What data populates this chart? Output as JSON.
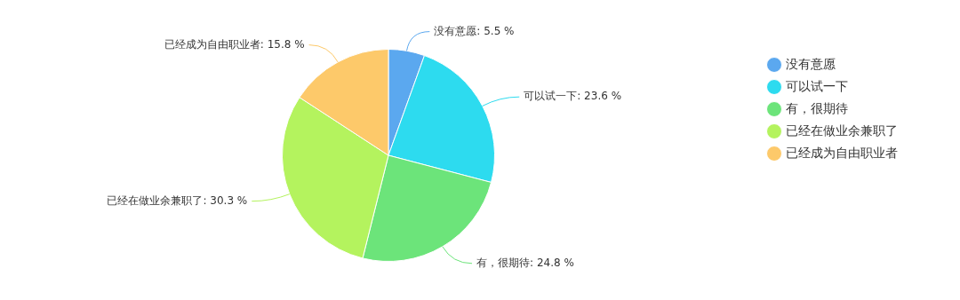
{
  "chart_data": {
    "type": "pie",
    "categories": [
      "没有意愿",
      "可以试一下",
      "有，很期待",
      "已经在做业余兼职了",
      "已经成为自由职业者"
    ],
    "values": [
      5.5,
      23.6,
      24.8,
      30.3,
      15.8
    ],
    "colors": [
      "#5ba8ef",
      "#2ddbef",
      "#6ce47a",
      "#b4f35e",
      "#fdc96a"
    ],
    "value_labels": [
      "没有意愿: 5.5 %",
      "可以试一下: 23.6 %",
      "有，很期待: 24.8 %",
      "已经在做业余兼职了: 30.3 %",
      "已经成为自由职业者: 15.8 %"
    ],
    "legend": "top right"
  }
}
